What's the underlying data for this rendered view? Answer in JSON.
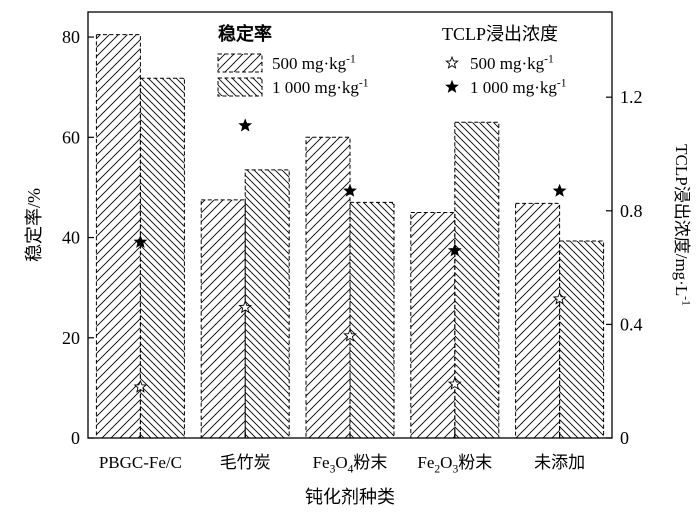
{
  "chart_data": {
    "type": "bar",
    "categories": [
      "PBGC-Fe/C",
      "毛竹炭",
      "Fe3O4粉末",
      "Fe2O3粉末",
      "未添加"
    ],
    "xlabel": "钝化剂种类",
    "ylabel_left": "稳定率/%",
    "ylabel_right": "TCLP浸出浓度/mg·L-1",
    "ylim_left": [
      0,
      85
    ],
    "yticks_left": [
      0,
      20,
      40,
      60,
      80
    ],
    "ylim_right": [
      0,
      1.5
    ],
    "yticks_right": [
      0,
      0.4,
      0.8,
      1.2
    ],
    "bar_series": [
      {
        "name": "500 mg·kg-1",
        "axis": "left",
        "values": [
          80.5,
          47.5,
          60,
          45,
          46.8
        ]
      },
      {
        "name": "1 000 mg·kg-1",
        "axis": "left",
        "values": [
          71.8,
          53.5,
          47,
          63,
          39.3
        ]
      }
    ],
    "point_series": [
      {
        "name": "500 mg·kg-1",
        "axis": "right",
        "marker": "hollow-star",
        "values": [
          0.18,
          0.46,
          0.36,
          0.19,
          0.49
        ]
      },
      {
        "name": "1 000 mg·kg-1",
        "axis": "right",
        "marker": "filled-star",
        "values": [
          0.69,
          1.1,
          0.87,
          0.66,
          0.87
        ]
      }
    ],
    "legend": {
      "placement": "top",
      "bar_title": "稳定率",
      "point_title": "TCLP浸出浓度"
    },
    "grid": false
  }
}
